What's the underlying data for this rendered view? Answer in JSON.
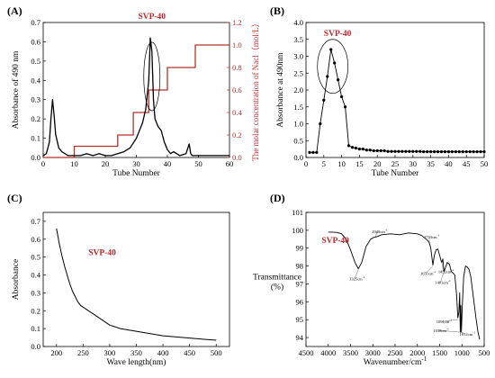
{
  "chart_data": [
    {
      "panel": "(A)",
      "type": "line",
      "annotation": "SVP-40",
      "xlabel": "Tube Number",
      "ylabel": "Absorbance of 490 nm",
      "ylabel_right": "The molar concentration of Nacl（mol/L）",
      "xlim": [
        0,
        60
      ],
      "ylim": [
        0,
        0.7
      ],
      "ylim_right": [
        0,
        1.2
      ],
      "xticks": [
        "0",
        "10",
        "20",
        "30",
        "40",
        "50",
        "60"
      ],
      "yticks": [
        "0.0",
        "0.1",
        "0.2",
        "0.3",
        "0.4",
        "0.5",
        "0.6",
        "0.7"
      ],
      "yticks_right": [
        "0.0",
        "0.2",
        "0.4",
        "0.6",
        "0.8",
        "1.0",
        "1.2"
      ],
      "series": [
        {
          "color": "#000000",
          "x": [
            0,
            1,
            2,
            2.5,
            3,
            3.5,
            4,
            5,
            6,
            7,
            8,
            9,
            10,
            12,
            14,
            16,
            18,
            20,
            22,
            24,
            26,
            28,
            30,
            31,
            32,
            33,
            34,
            34.5,
            35,
            35.5,
            36,
            37,
            38,
            39,
            40,
            41,
            42,
            44,
            46,
            47,
            47.5,
            48,
            49,
            50,
            52,
            54,
            56,
            58,
            60
          ],
          "y": [
            0.01,
            0.02,
            0.08,
            0.2,
            0.3,
            0.22,
            0.12,
            0.05,
            0.03,
            0.02,
            0.01,
            0.01,
            0.01,
            0.01,
            0.02,
            0.01,
            0.02,
            0.01,
            0.01,
            0.02,
            0.03,
            0.05,
            0.1,
            0.14,
            0.18,
            0.25,
            0.4,
            0.62,
            0.55,
            0.3,
            0.2,
            0.16,
            0.14,
            0.08,
            0.04,
            0.02,
            0.03,
            0.01,
            0.02,
            0.07,
            0.02,
            0.01,
            0.01,
            0.01,
            0.01,
            0.01,
            0.01,
            0.01,
            0.01
          ]
        },
        {
          "color": "#b5302a",
          "axis": "right",
          "x": [
            0,
            10,
            10,
            24,
            24,
            29,
            29,
            34,
            34,
            40,
            40,
            49,
            49,
            60
          ],
          "y": [
            0,
            0,
            0.1,
            0.1,
            0.2,
            0.2,
            0.4,
            0.4,
            0.6,
            0.6,
            0.8,
            0.8,
            1.0,
            1.0
          ]
        }
      ]
    },
    {
      "panel": "(B)",
      "type": "line",
      "annotation": "SVP-40",
      "xlabel": "Tube Number",
      "ylabel": "Absorbance at 490nm",
      "xlim": [
        0,
        50
      ],
      "ylim": [
        0,
        4.0
      ],
      "xticks": [
        "0",
        "5",
        "10",
        "15",
        "20",
        "25",
        "30",
        "35",
        "40",
        "45",
        "50"
      ],
      "yticks": [
        "0.0",
        "0.5",
        "1.0",
        "1.5",
        "2.0",
        "2.5",
        "3.0",
        "3.5",
        "4.0"
      ],
      "series": [
        {
          "color": "#000000",
          "x": [
            1,
            2,
            3,
            4,
            5,
            6,
            7,
            8,
            9,
            10,
            11,
            12,
            13,
            14,
            15,
            16,
            17,
            18,
            19,
            20,
            21,
            22,
            23,
            24,
            25,
            26,
            27,
            28,
            29,
            30,
            31,
            32,
            33,
            34,
            35,
            36,
            37,
            38,
            39,
            40,
            41,
            42,
            43,
            44,
            45,
            46,
            47,
            48,
            49,
            50
          ],
          "y": [
            0.15,
            0.15,
            0.15,
            1.0,
            1.7,
            2.4,
            3.2,
            2.8,
            2.3,
            1.8,
            1.5,
            0.35,
            0.3,
            0.28,
            0.25,
            0.25,
            0.22,
            0.22,
            0.2,
            0.2,
            0.2,
            0.2,
            0.18,
            0.18,
            0.18,
            0.18,
            0.18,
            0.18,
            0.18,
            0.18,
            0.18,
            0.18,
            0.17,
            0.17,
            0.17,
            0.17,
            0.17,
            0.17,
            0.17,
            0.17,
            0.17,
            0.17,
            0.17,
            0.17,
            0.17,
            0.17,
            0.17,
            0.17,
            0.17,
            0.17
          ]
        }
      ]
    },
    {
      "panel": "(C)",
      "type": "line",
      "annotation": "SVP-40",
      "xlabel": "Wave length(nm)",
      "ylabel": "Absorbance",
      "xlim": [
        175,
        525
      ],
      "ylim": [
        0,
        0.75
      ],
      "xticks": [
        "200",
        "250",
        "300",
        "350",
        "400",
        "450",
        "500"
      ],
      "yticks": [
        "0.0",
        "0.1",
        "0.2",
        "0.3",
        "0.4",
        "0.5",
        "0.6",
        "0.7"
      ],
      "series": [
        {
          "color": "#000000",
          "x": [
            200,
            205,
            210,
            215,
            220,
            225,
            230,
            235,
            240,
            245,
            250,
            260,
            270,
            280,
            290,
            300,
            320,
            340,
            360,
            380,
            400,
            420,
            440,
            460,
            480,
            500
          ],
          "y": [
            0.66,
            0.58,
            0.51,
            0.45,
            0.4,
            0.35,
            0.31,
            0.28,
            0.25,
            0.23,
            0.22,
            0.2,
            0.18,
            0.16,
            0.14,
            0.12,
            0.1,
            0.09,
            0.08,
            0.07,
            0.06,
            0.055,
            0.05,
            0.045,
            0.04,
            0.035
          ]
        }
      ]
    },
    {
      "panel": "(D)",
      "type": "line",
      "annotation": "SVP-40",
      "xlabel": "Wavenumber/cm",
      "xlabel_sup": "-1",
      "ylabel": "Transmittance",
      "ylabel2": "(%)",
      "xlim": [
        4500,
        500
      ],
      "ylim": [
        93.5,
        101
      ],
      "xticks": [
        "4500",
        "4000",
        "3500",
        "3000",
        "2500",
        "2000",
        "1500",
        "1000",
        "500"
      ],
      "yticks": [
        "94",
        "95",
        "96",
        "97",
        "98",
        "99",
        "100",
        "101"
      ],
      "peaks": [
        {
          "wn": 3325,
          "y": 97.8,
          "label": "3325cm",
          "sup": "-1"
        },
        {
          "wn": 2940,
          "y": 99.6,
          "label": "2940cm",
          "sup": "-1"
        },
        {
          "wn": 1733,
          "y": 99.3,
          "label": "1733cm",
          "sup": "-1"
        },
        {
          "wn": 1651,
          "y": 98.0,
          "label": "1651cm",
          "sup": "-1"
        },
        {
          "wn": 1452,
          "y": 98.2,
          "label": "1452cm",
          "sup": "-1"
        },
        {
          "wn": 1401,
          "y": 97.7,
          "label": "1401cm",
          "sup": "-1"
        },
        {
          "wn": 1091,
          "y": 95.0,
          "label": "1091cm",
          "sup": "-1"
        },
        {
          "wn": 1038,
          "y": 94.3,
          "label": "1038cm",
          "sup": "-1"
        },
        {
          "wn": 1012,
          "y": 94.3,
          "label": "1012cm",
          "sup": "-1"
        }
      ],
      "series": [
        {
          "color": "#000000",
          "x": [
            4000,
            3900,
            3800,
            3700,
            3600,
            3500,
            3400,
            3325,
            3250,
            3150,
            3050,
            2980,
            2940,
            2900,
            2800,
            2600,
            2400,
            2200,
            2000,
            1900,
            1800,
            1760,
            1733,
            1700,
            1680,
            1651,
            1620,
            1580,
            1540,
            1500,
            1470,
            1452,
            1430,
            1401,
            1370,
            1330,
            1280,
            1240,
            1200,
            1160,
            1120,
            1091,
            1070,
            1050,
            1038,
            1025,
            1012,
            995,
            960,
            920,
            880,
            840,
            800,
            760,
            720,
            680,
            640,
            600
          ],
          "y": [
            99.9,
            99.9,
            99.88,
            99.8,
            99.5,
            98.9,
            98.2,
            97.85,
            98.2,
            99.1,
            99.5,
            99.6,
            99.62,
            99.65,
            99.75,
            99.8,
            99.75,
            99.85,
            99.8,
            99.7,
            99.5,
            99.4,
            99.3,
            99.0,
            98.6,
            98.05,
            98.6,
            98.9,
            98.95,
            98.6,
            98.3,
            98.2,
            98.4,
            97.7,
            97.9,
            98.2,
            98.1,
            97.7,
            97.6,
            97.5,
            96.4,
            95.1,
            95.4,
            96.5,
            94.3,
            95.8,
            94.3,
            95.6,
            97.4,
            98.0,
            97.95,
            97.8,
            97.4,
            96.6,
            95.8,
            95.0,
            94.3,
            93.9
          ]
        }
      ]
    }
  ]
}
